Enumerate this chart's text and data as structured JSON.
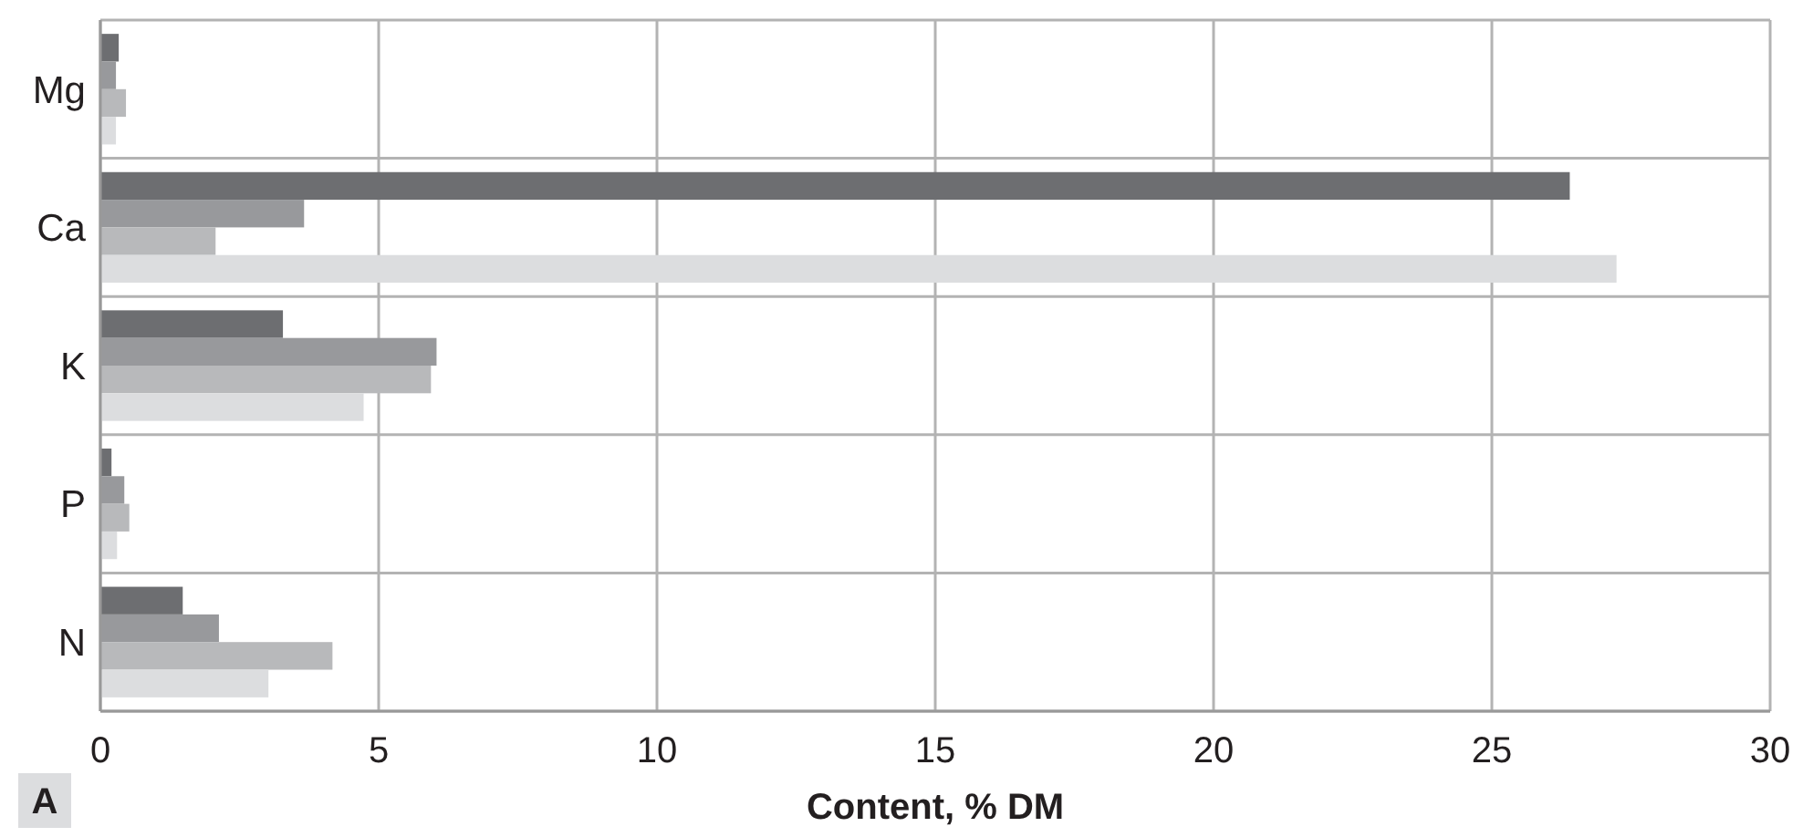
{
  "chart_data": {
    "type": "bar",
    "orientation": "horizontal",
    "categories": [
      "Mg",
      "Ca",
      "K",
      "P",
      "N"
    ],
    "series": [
      {
        "color": "#6d6e71",
        "values": [
          0.33,
          26.4,
          3.28,
          0.2,
          1.48
        ]
      },
      {
        "color": "#98999c",
        "values": [
          0.28,
          3.66,
          6.04,
          0.43,
          2.13
        ]
      },
      {
        "color": "#b8b9bb",
        "values": [
          0.46,
          2.07,
          5.94,
          0.52,
          4.17
        ]
      },
      {
        "color": "#dcdddf",
        "values": [
          0.28,
          27.24,
          4.73,
          0.3,
          3.02
        ]
      }
    ],
    "xlim": [
      0,
      30
    ],
    "xticks": [
      0,
      5,
      10,
      15,
      20,
      25,
      30
    ],
    "xlabel": "Content, % DM",
    "grid": true,
    "annotations": [
      "A"
    ]
  }
}
